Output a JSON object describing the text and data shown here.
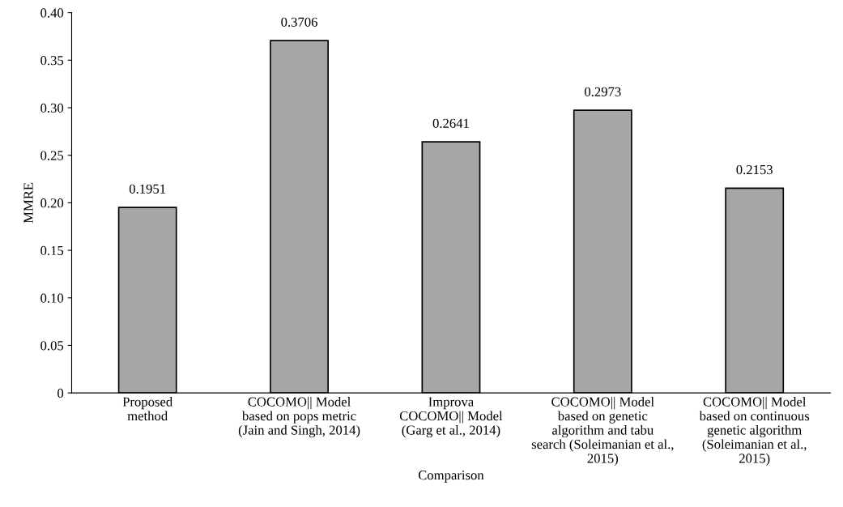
{
  "chart_data": {
    "type": "bar",
    "xlabel": "Comparison",
    "ylabel": "MMRE",
    "categories": [
      "Proposed\nmethod",
      "COCOMO|| Model\nbased on pops metric\n(Jain and Singh, 2014)",
      "Improva\nCOCOMO|| Model\n(Garg et al., 2014)",
      "COCOMO|| Model\nbased on genetic\nalgorithm and tabu\nsearch (Soleimanian et al.,\n2015)",
      "COCOMO|| Model\nbased on continuous\ngenetic algorithm\n(Soleimanian et al.,\n2015)"
    ],
    "values": [
      0.1951,
      0.3706,
      0.2641,
      0.2973,
      0.2153
    ],
    "color": "#a6a6a6",
    "data_labels": true,
    "grid": false,
    "legend": false,
    "ylim": [
      0,
      0.4
    ],
    "yticks": [
      0,
      {
        "value": 0.05,
        "label": "0.05"
      },
      {
        "value": 0.1,
        "label": "0.10"
      },
      {
        "value": 0.15,
        "label": "0.15"
      },
      {
        "value": 0.2,
        "label": "0.20"
      },
      {
        "value": 0.25,
        "label": "0.25"
      },
      {
        "value": 0.3,
        "label": "0.30"
      },
      {
        "value": 0.35,
        "label": "0.35"
      },
      {
        "value": 0.4,
        "label": "0.40"
      }
    ]
  }
}
